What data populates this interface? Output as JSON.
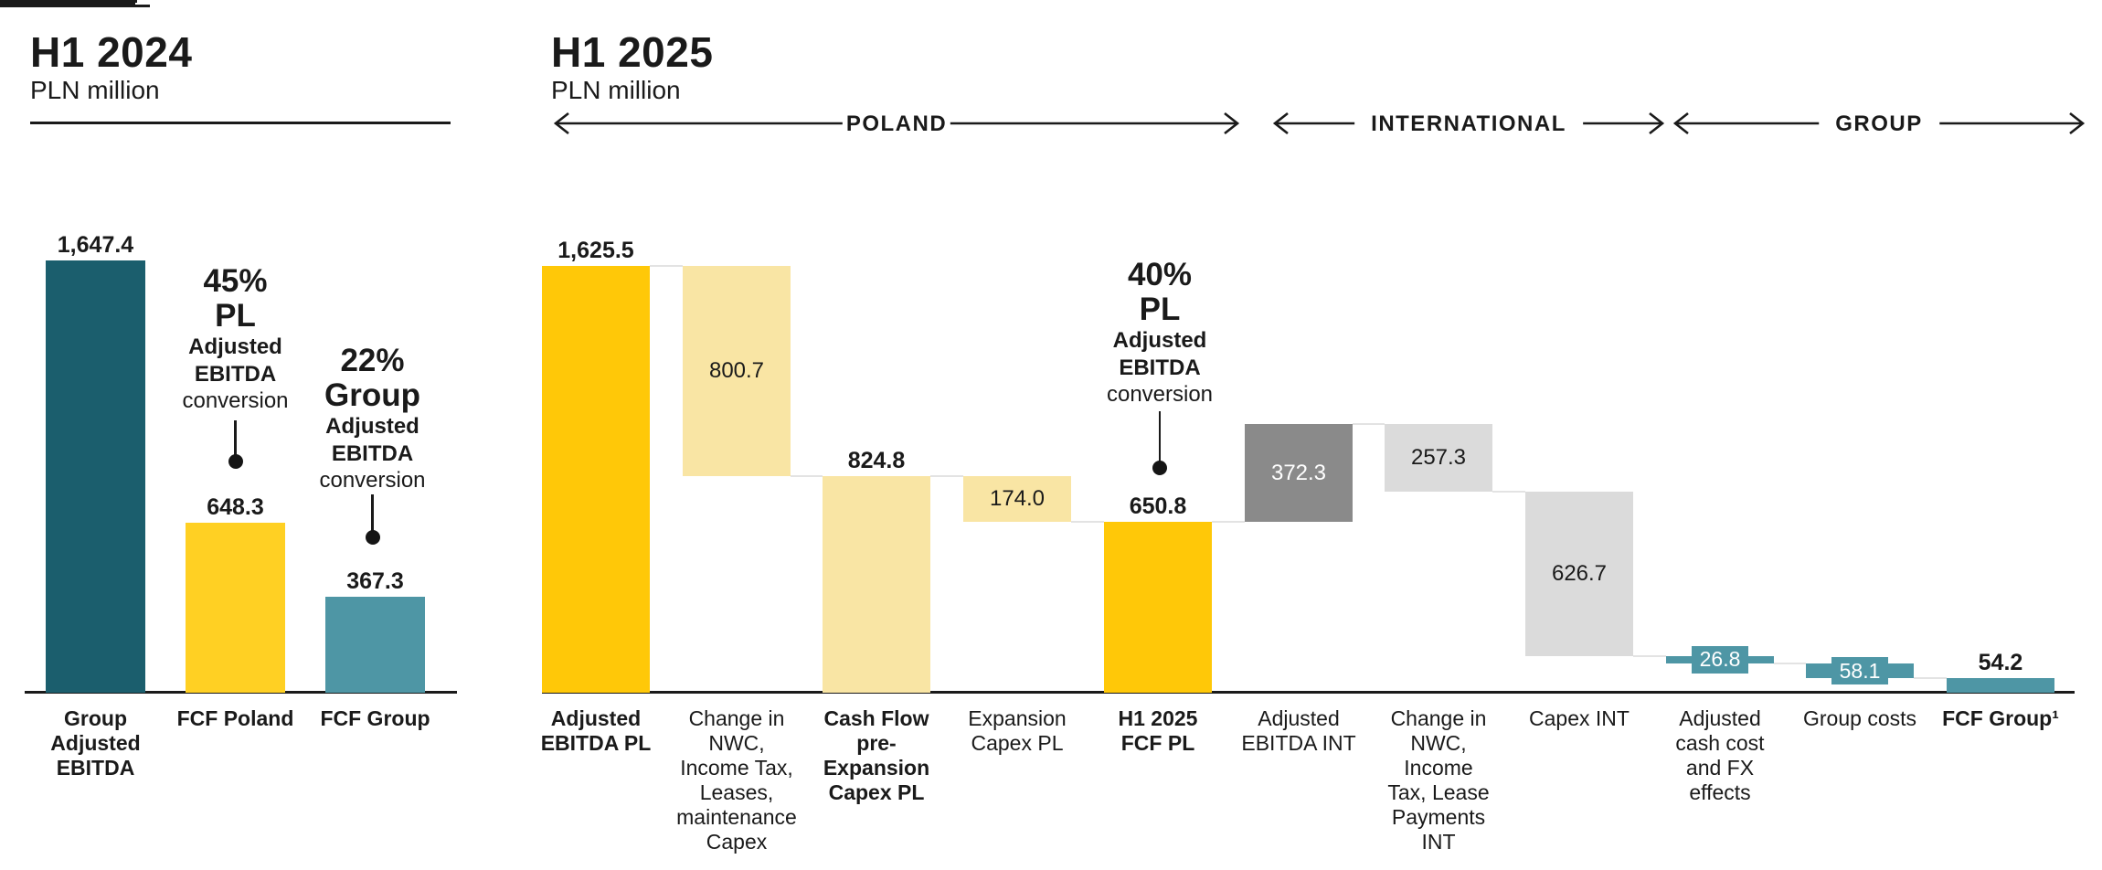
{
  "palette": {
    "dark_teal": "#1B5E6D",
    "teal": "#4E96A5",
    "yellow": "#FFC808",
    "yellow_left": "#FFD023",
    "cream": "#F9E5A4",
    "gray_dark": "#8A8A8A",
    "gray_light": "#DBDBDB",
    "ink": "#1A1A1A",
    "connector": "#E3E3E3",
    "white": "#FFFFFF"
  },
  "chart_data": [
    {
      "type": "bar",
      "title": "H1 2024",
      "unit_label": "PLN million",
      "ylim": [
        0,
        1700
      ],
      "grid": false,
      "categories": [
        "Group Adjusted EBITDA",
        "FCF Poland",
        "FCF Group"
      ],
      "categories_display": [
        "Group\nAdjusted\nEBITDA",
        "FCF Poland",
        "FCF Group"
      ],
      "values": [
        1647.4,
        648.3,
        367.3
      ],
      "value_labels": [
        "1,647.4",
        "648.3",
        "367.3"
      ],
      "colors": [
        "dark_teal",
        "yellow_left",
        "teal"
      ],
      "annotations": [
        {
          "big": "45%\nPL",
          "mid": "Adjusted\nEBITDA",
          "small": "conversion",
          "points_to": "FCF Poland"
        },
        {
          "big": "22%\nGroup",
          "mid": "Adjusted\nEBITDA",
          "small": "conversion",
          "points_to": "FCF Group"
        }
      ]
    },
    {
      "type": "waterfall",
      "title": "H1 2025",
      "unit_label": "PLN million",
      "ylim": [
        0,
        1700
      ],
      "grid": false,
      "sections": [
        {
          "label": "POLAND",
          "covers": [
            "Adjusted EBITDA PL",
            "H1 2025 FCF PL"
          ]
        },
        {
          "label": "INTERNATIONAL",
          "covers": [
            "Adjusted EBITDA INT",
            "Capex INT"
          ]
        },
        {
          "label": "GROUP",
          "covers": [
            "Adjusted cash cost and FX effects",
            "FCF Group¹"
          ]
        }
      ],
      "steps": [
        {
          "category": "Adjusted EBITDA PL",
          "category_display": "Adjusted\nEBITDA PL",
          "bold_category": true,
          "kind": "total",
          "value": 1625.5,
          "display": "1,625.5",
          "color": "yellow",
          "label_pos": "above"
        },
        {
          "category": "Change in NWC, Income Tax, Leases, maintenance Capex",
          "category_display": "Change in\nNWC,\nIncome Tax,\nLeases,\nmaintenance\nCapex",
          "bold_category": false,
          "kind": "delta",
          "value": -800.7,
          "display": "800.7",
          "color": "cream",
          "label_pos": "inside",
          "text": "dark"
        },
        {
          "category": "Cash Flow pre-Expansion Capex PL",
          "category_display": "Cash Flow\npre-\nExpansion\nCapex PL",
          "bold_category": true,
          "kind": "total",
          "value": 824.8,
          "display": "824.8",
          "color": "cream",
          "label_pos": "above"
        },
        {
          "category": "Expansion Capex PL",
          "category_display": "Expansion\nCapex PL",
          "bold_category": false,
          "kind": "delta",
          "value": -174.0,
          "display": "174.0",
          "color": "cream",
          "label_pos": "inside",
          "text": "dark"
        },
        {
          "category": "H1 2025 FCF PL",
          "category_display": "H1 2025\nFCF PL",
          "bold_category": true,
          "kind": "total",
          "value": 650.8,
          "display": "650.8",
          "color": "yellow",
          "label_pos": "above"
        },
        {
          "category": "Adjusted EBITDA INT",
          "category_display": "Adjusted\nEBITDA INT",
          "bold_category": false,
          "kind": "delta",
          "value": 372.3,
          "display": "372.3",
          "color": "gray_dark",
          "label_pos": "inside",
          "text": "white"
        },
        {
          "category": "Change in NWC, Income Tax, Lease Payments INT",
          "category_display": "Change in\nNWC,\nIncome\nTax, Lease\nPayments\nINT",
          "bold_category": false,
          "kind": "delta",
          "value": -257.3,
          "display": "257.3",
          "color": "gray_light",
          "label_pos": "inside",
          "text": "dark"
        },
        {
          "category": "Capex INT",
          "category_display": "Capex INT",
          "bold_category": false,
          "kind": "delta",
          "value": -626.7,
          "display": "626.7",
          "color": "gray_light",
          "label_pos": "inside",
          "text": "dark"
        },
        {
          "category": "Adjusted cash cost and FX effects",
          "category_display": "Adjusted\ncash cost\nand FX\neffects",
          "bold_category": false,
          "kind": "delta",
          "value": -26.8,
          "display": "26.8",
          "color": "teal",
          "label_pos": "box",
          "text": "white"
        },
        {
          "category": "Group costs",
          "category_display": "Group costs",
          "bold_category": false,
          "kind": "delta",
          "value": -58.1,
          "display": "58.1",
          "color": "teal",
          "label_pos": "box",
          "text": "white"
        },
        {
          "category": "FCF Group¹",
          "category_display": "FCF Group¹",
          "bold_category": true,
          "kind": "total",
          "value": 54.2,
          "display": "54.2",
          "color": "teal",
          "label_pos": "above"
        }
      ],
      "annotations": [
        {
          "big": "40%\nPL",
          "mid": "Adjusted\nEBITDA",
          "small": "conversion",
          "points_to": "H1 2025 FCF PL"
        }
      ]
    }
  ]
}
